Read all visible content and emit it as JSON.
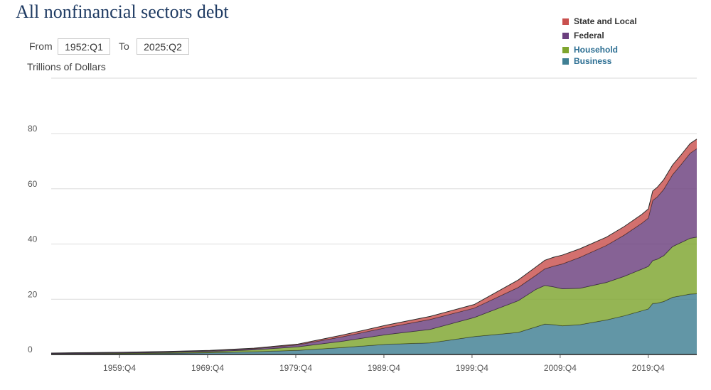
{
  "title": "All nonfinancial sectors debt",
  "range": {
    "from_label": "From",
    "from_value": "1952:Q1",
    "to_label": "To",
    "to_value": "2025:Q2"
  },
  "units": "Trillions of Dollars",
  "legend": [
    {
      "name": "State and Local",
      "color": "#c9504e",
      "text_color": "#333333"
    },
    {
      "name": "Federal",
      "color": "#6b3f7e",
      "text_color": "#333333"
    },
    {
      "name": "Household",
      "color": "#7ea52e",
      "text_color": "#2d6f93"
    },
    {
      "name": "Business",
      "color": "#3f7f93",
      "text_color": "#2d6f93"
    }
  ],
  "chart_data": {
    "type": "area",
    "stacked": true,
    "title": "All nonfinancial sectors debt",
    "ylabel": "Trillions of Dollars",
    "xlim": [
      1952.0,
      2025.25
    ],
    "ylim": [
      0,
      80
    ],
    "grid": true,
    "legend_position": "top-right",
    "yticks": [
      {
        "value": 0,
        "label": "0"
      },
      {
        "value": 20,
        "label": "20"
      },
      {
        "value": 40,
        "label": "40"
      },
      {
        "value": 60,
        "label": "60"
      },
      {
        "value": 80,
        "label": "80"
      }
    ],
    "xticks": [
      {
        "value": 1959.75,
        "label": "1959:Q4"
      },
      {
        "value": 1969.75,
        "label": "1969:Q4"
      },
      {
        "value": 1979.75,
        "label": "1979:Q4"
      },
      {
        "value": 1989.75,
        "label": "1989:Q4"
      },
      {
        "value": 1999.75,
        "label": "1999:Q4"
      },
      {
        "value": 2009.75,
        "label": "2009:Q4"
      },
      {
        "value": 2019.75,
        "label": "2019:Q4"
      }
    ],
    "x": [
      1952,
      1955,
      1960,
      1965,
      1970,
      1975,
      1980,
      1985,
      1990,
      1995,
      2000,
      2005,
      2007,
      2008,
      2009,
      2010,
      2012,
      2015,
      2017,
      2019,
      2019.75,
      2020.25,
      2020.75,
      2021.5,
      2022.5,
      2023.5,
      2024.5,
      2025.25
    ],
    "series": [
      {
        "name": "Business",
        "color": "#3f7f93",
        "values": [
          0.15,
          0.2,
          0.3,
          0.45,
          0.65,
          1.0,
          1.5,
          2.5,
          3.7,
          4.2,
          6.5,
          8.0,
          10.0,
          11.0,
          10.8,
          10.4,
          10.8,
          12.5,
          14.0,
          15.8,
          16.5,
          18.5,
          18.6,
          19.2,
          20.7,
          21.3,
          21.9,
          22.0
        ]
      },
      {
        "name": "Household",
        "color": "#7ea52e",
        "values": [
          0.1,
          0.15,
          0.2,
          0.3,
          0.4,
          0.7,
          1.3,
          2.3,
          3.5,
          4.9,
          6.9,
          11.5,
          13.6,
          14.0,
          13.7,
          13.4,
          13.2,
          13.6,
          14.3,
          15.1,
          15.4,
          15.5,
          15.9,
          16.6,
          18.4,
          19.3,
          20.2,
          20.5
        ]
      },
      {
        "name": "Federal",
        "color": "#6b3f7e",
        "values": [
          0.2,
          0.22,
          0.24,
          0.26,
          0.3,
          0.4,
          0.7,
          1.6,
          2.5,
          3.6,
          3.4,
          4.8,
          5.1,
          6.0,
          7.5,
          9.0,
          11.2,
          13.4,
          14.9,
          16.6,
          17.5,
          21.8,
          22.5,
          24.0,
          26.0,
          28.3,
          30.8,
          32.0
        ]
      },
      {
        "name": "State and Local",
        "color": "#c9504e",
        "values": [
          0.05,
          0.06,
          0.07,
          0.08,
          0.12,
          0.18,
          0.25,
          0.6,
          0.9,
          1.1,
          1.3,
          2.7,
          3.0,
          3.1,
          3.2,
          3.2,
          3.1,
          3.0,
          3.1,
          3.2,
          3.3,
          3.4,
          3.5,
          3.5,
          3.5,
          3.5,
          3.5,
          3.5
        ]
      }
    ]
  }
}
